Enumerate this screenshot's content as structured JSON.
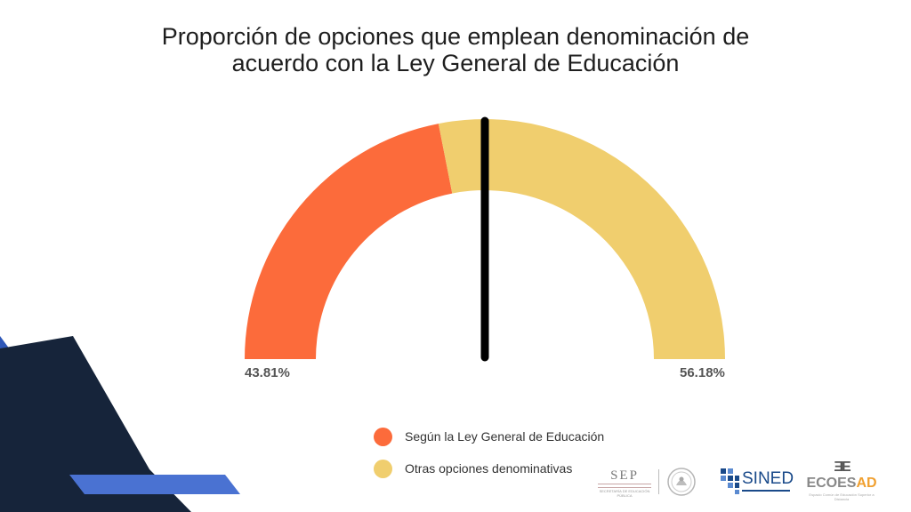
{
  "chart_data": {
    "type": "pie",
    "variant": "semicircle-gauge",
    "title_line1": "Proporción de opciones que emplean denominación de",
    "title_line2": "acuerdo con la Ley General de Educación",
    "series": [
      {
        "name": "Según la Ley General de Educación",
        "value": 43.81,
        "label": "43.81%",
        "color": "#fc6b3b"
      },
      {
        "name": "Otras opciones denominativas",
        "value": 56.18,
        "label": "56.18%",
        "color": "#f0ce6e"
      }
    ],
    "needle_value": 43.81,
    "needle_color": "#000000",
    "legend_position": "bottom-center"
  },
  "colors": {
    "deco_dark": "#16243a",
    "deco_blue": "#3a64c0"
  },
  "logos": {
    "sep": {
      "text": "SEP",
      "subtitle": "SECRETARÍA DE EDUCACIÓN PÚBLICA"
    },
    "sined": {
      "text": "SINED"
    },
    "ecoesad": {
      "mark": "ƎE",
      "text_a": "ECOES",
      "text_b": "AD",
      "subtitle": "Espacio Común de Educación Superior a Distancia"
    }
  }
}
